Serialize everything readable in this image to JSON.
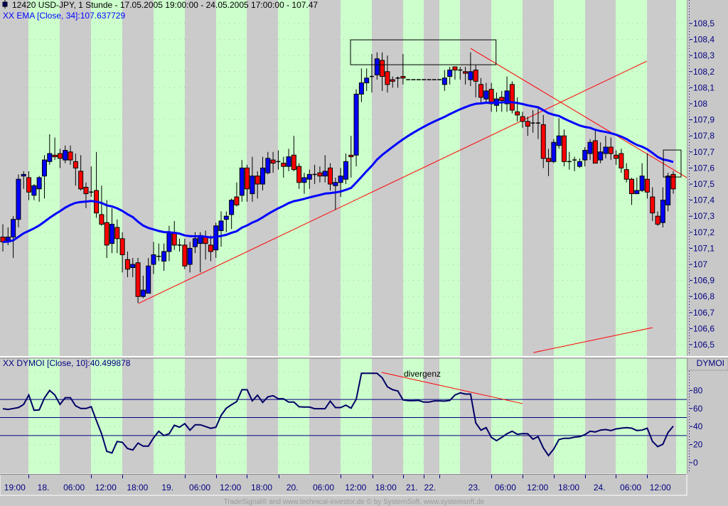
{
  "header": {
    "title": "12420  USD-JPY, 1 Stunde - 17.05.2005 19:00:00 - 24.05.2005 17:00:00 - 107.47",
    "ema_legend": "XX EMA [Close, 34]:107.637729",
    "dymoi_legend": "XX DYMOI [Close, 10]:40.499878",
    "dymoi_axis_title": "DYMOI"
  },
  "footer": "TradeSignal® and www.technical-investor.de © by  SystemSoft, www.systemsoft.de",
  "colors": {
    "up": "#0000ff",
    "down": "#ff0000",
    "ema": "#0000ff",
    "dymoi": "#000066",
    "band_green": "#ccffcc",
    "band_gray": "#cbcbcb",
    "trendline": "#ff0000",
    "axis_text": "#000080"
  },
  "chart_data": [
    {
      "type": "candlestick",
      "title": "USD-JPY, 1 Stunde",
      "ylim": [
        106.45,
        108.6
      ],
      "y_ticks": [
        {
          "label": "108,5",
          "value": 108.5
        },
        {
          "label": "108,4",
          "value": 108.4
        },
        {
          "label": "108,3",
          "value": 108.3
        },
        {
          "label": "108,2",
          "value": 108.2
        },
        {
          "label": "108,1",
          "value": 108.1
        },
        {
          "label": "108",
          "value": 108.0
        },
        {
          "label": "107,9",
          "value": 107.9
        },
        {
          "label": "107,8",
          "value": 107.8
        },
        {
          "label": "107,7",
          "value": 107.7
        },
        {
          "label": "107,6",
          "value": 107.6
        },
        {
          "label": "107,5",
          "value": 107.5
        },
        {
          "label": "107,4",
          "value": 107.4
        },
        {
          "label": "107,3",
          "value": 107.3
        },
        {
          "label": "107,2",
          "value": 107.2
        },
        {
          "label": "107,1",
          "value": 107.1
        },
        {
          "label": "107",
          "value": 107.0
        },
        {
          "label": "106,9",
          "value": 106.9
        },
        {
          "label": "106,8",
          "value": 106.8
        },
        {
          "label": "106,7",
          "value": 106.7
        },
        {
          "label": "106,6",
          "value": 106.6
        },
        {
          "label": "106,5",
          "value": 106.5
        }
      ],
      "x_ticks": [
        {
          "label": "19:00",
          "at": 2.3
        },
        {
          "label": "18.",
          "at": 7.8
        },
        {
          "label": "06:00",
          "at": 13.7
        },
        {
          "label": "12:00",
          "at": 19.8
        },
        {
          "label": "18:00",
          "at": 25.9
        },
        {
          "label": "19.",
          "at": 31.7
        },
        {
          "label": "06:00",
          "at": 37.9
        },
        {
          "label": "12:00",
          "at": 43.8
        },
        {
          "label": "18:00",
          "at": 49.8
        },
        {
          "label": "20.",
          "at": 55.7
        },
        {
          "label": "06:00",
          "at": 61.7
        },
        {
          "label": "12:00",
          "at": 67.9
        },
        {
          "label": "18:00",
          "at": 73.7
        },
        {
          "label": "21.",
          "at": 78.7
        },
        {
          "label": "22.",
          "at": 82.2
        },
        {
          "label": "23.",
          "at": 90.7
        },
        {
          "label": "06:00",
          "at": 96.7
        },
        {
          "label": "12:00",
          "at": 102.9
        },
        {
          "label": "18:00",
          "at": 108.9
        },
        {
          "label": "24.",
          "at": 114.8
        },
        {
          "label": "06:00",
          "at": 120.8
        },
        {
          "label": "12:00",
          "at": 126.5
        }
      ],
      "ohlc": [
        [
          107.17,
          107.25,
          107.08,
          107.14
        ],
        [
          107.15,
          107.23,
          107.12,
          107.17
        ],
        [
          107.17,
          107.3,
          107.04,
          107.28
        ],
        [
          107.28,
          107.56,
          107.23,
          107.53
        ],
        [
          107.55,
          107.58,
          107.47,
          107.56
        ],
        [
          107.54,
          107.58,
          107.4,
          107.45
        ],
        [
          107.43,
          107.5,
          107.4,
          107.49
        ],
        [
          107.47,
          107.55,
          107.39,
          107.54
        ],
        [
          107.55,
          107.68,
          107.41,
          107.65
        ],
        [
          107.64,
          107.81,
          107.62,
          107.69
        ],
        [
          107.68,
          107.79,
          107.65,
          107.67
        ],
        [
          107.69,
          107.72,
          107.6,
          107.66
        ],
        [
          107.65,
          107.74,
          107.63,
          107.71
        ],
        [
          107.7,
          107.74,
          107.62,
          107.65
        ],
        [
          107.64,
          107.69,
          107.49,
          107.6
        ],
        [
          107.58,
          107.68,
          107.46,
          107.47
        ],
        [
          107.48,
          107.51,
          107.35,
          107.44
        ],
        [
          107.45,
          107.61,
          107.42,
          107.45
        ],
        [
          107.46,
          107.7,
          107.29,
          107.32
        ],
        [
          107.31,
          107.49,
          107.24,
          107.25
        ],
        [
          107.26,
          107.4,
          107.04,
          107.12
        ],
        [
          107.13,
          107.35,
          107.07,
          107.25
        ],
        [
          107.23,
          107.28,
          107.07,
          107.16
        ],
        [
          107.16,
          107.2,
          106.95,
          107.06
        ],
        [
          107.03,
          107.08,
          106.92,
          106.97
        ],
        [
          106.98,
          107.04,
          106.92,
          107.0
        ],
        [
          107.01,
          107.04,
          106.76,
          106.8
        ],
        [
          106.8,
          106.93,
          106.79,
          106.84
        ],
        [
          106.82,
          107.04,
          106.82,
          106.99
        ],
        [
          107.0,
          107.14,
          106.94,
          107.06
        ],
        [
          107.05,
          107.13,
          107.02,
          107.05
        ],
        [
          107.02,
          107.13,
          106.96,
          107.08
        ],
        [
          107.08,
          107.24,
          107.02,
          107.2
        ],
        [
          107.2,
          107.27,
          107.09,
          107.12
        ],
        [
          107.12,
          107.16,
          107.08,
          107.12
        ],
        [
          107.12,
          107.16,
          106.97,
          106.99
        ],
        [
          107.0,
          107.14,
          106.95,
          107.1
        ],
        [
          107.11,
          107.2,
          107.07,
          107.16
        ],
        [
          107.13,
          107.2,
          106.95,
          107.18
        ],
        [
          107.17,
          107.21,
          107.03,
          107.13
        ],
        [
          107.12,
          107.18,
          107.02,
          107.08
        ],
        [
          107.09,
          107.26,
          107.04,
          107.24
        ],
        [
          107.21,
          107.33,
          107.11,
          107.27
        ],
        [
          107.28,
          107.33,
          107.2,
          107.3
        ],
        [
          107.31,
          107.41,
          107.22,
          107.4
        ],
        [
          107.42,
          107.51,
          107.36,
          107.37
        ],
        [
          107.43,
          107.65,
          107.39,
          107.6
        ],
        [
          107.6,
          107.62,
          107.39,
          107.47
        ],
        [
          107.44,
          107.67,
          107.39,
          107.55
        ],
        [
          107.55,
          107.58,
          107.41,
          107.5
        ],
        [
          107.5,
          107.67,
          107.46,
          107.6
        ],
        [
          107.57,
          107.7,
          107.56,
          107.66
        ],
        [
          107.65,
          107.7,
          107.57,
          107.63
        ],
        [
          107.64,
          107.71,
          107.59,
          107.64
        ],
        [
          107.63,
          107.67,
          107.54,
          107.61
        ],
        [
          107.61,
          107.72,
          107.58,
          107.67
        ],
        [
          107.68,
          107.8,
          107.58,
          107.59
        ],
        [
          107.61,
          107.63,
          107.47,
          107.51
        ],
        [
          107.51,
          107.57,
          107.44,
          107.54
        ],
        [
          107.53,
          107.59,
          107.47,
          107.56
        ],
        [
          107.56,
          107.62,
          107.5,
          107.56
        ],
        [
          107.57,
          107.61,
          107.51,
          107.55
        ],
        [
          107.55,
          107.68,
          107.51,
          107.58
        ],
        [
          107.6,
          107.63,
          107.46,
          107.5
        ],
        [
          107.49,
          107.54,
          107.34,
          107.51
        ],
        [
          107.51,
          107.6,
          107.42,
          107.55
        ],
        [
          107.53,
          107.69,
          107.5,
          107.64
        ],
        [
          107.68,
          107.8,
          107.54,
          107.67
        ],
        [
          107.68,
          108.09,
          107.61,
          108.06
        ],
        [
          108.06,
          108.22,
          108.01,
          108.13
        ],
        [
          108.13,
          108.22,
          108.08,
          108.16
        ],
        [
          108.17,
          108.31,
          108.07,
          108.17
        ],
        [
          108.18,
          108.32,
          108.15,
          108.28
        ],
        [
          108.27,
          108.32,
          108.08,
          108.17
        ],
        [
          108.2,
          108.3,
          108.07,
          108.12
        ],
        [
          108.15,
          108.17,
          108.1,
          108.14
        ],
        [
          108.16,
          108.17,
          108.1,
          108.16
        ],
        [
          108.17,
          108.31,
          108.12,
          108.16
        ],
        [
          108.15,
          108.15,
          108.15,
          108.15
        ],
        [
          108.15,
          108.15,
          108.15,
          108.15
        ],
        [
          108.15,
          108.15,
          108.15,
          108.15
        ],
        [
          108.15,
          108.15,
          108.15,
          108.15
        ],
        [
          108.15,
          108.15,
          108.15,
          108.15
        ],
        [
          108.15,
          108.15,
          108.15,
          108.15
        ],
        [
          108.15,
          108.15,
          108.15,
          108.15
        ],
        [
          108.12,
          108.21,
          108.08,
          108.16
        ],
        [
          108.17,
          108.23,
          108.12,
          108.21
        ],
        [
          108.23,
          108.23,
          108.15,
          108.21
        ],
        [
          108.21,
          108.23,
          108.15,
          108.21
        ],
        [
          108.2,
          108.23,
          108.12,
          108.19
        ],
        [
          108.15,
          108.32,
          108.11,
          108.2
        ],
        [
          108.21,
          108.24,
          108.04,
          108.14
        ],
        [
          108.12,
          108.16,
          108.0,
          108.04
        ],
        [
          108.03,
          108.13,
          108.0,
          108.08
        ],
        [
          108.09,
          108.13,
          107.95,
          108.0
        ],
        [
          107.99,
          108.07,
          107.95,
          108.03
        ],
        [
          108.04,
          108.08,
          107.95,
          108.02
        ],
        [
          108.0,
          108.17,
          107.95,
          108.08
        ],
        [
          108.12,
          108.14,
          107.94,
          107.96
        ],
        [
          107.95,
          108.04,
          107.89,
          107.93
        ],
        [
          107.92,
          107.95,
          107.85,
          107.89
        ],
        [
          107.89,
          107.92,
          107.8,
          107.86
        ],
        [
          107.88,
          107.96,
          107.82,
          107.88
        ],
        [
          107.88,
          107.98,
          107.78,
          107.88
        ],
        [
          107.87,
          107.93,
          107.6,
          107.66
        ],
        [
          107.66,
          107.72,
          107.55,
          107.64
        ],
        [
          107.64,
          107.78,
          107.63,
          107.76
        ],
        [
          107.74,
          107.91,
          107.72,
          107.8
        ],
        [
          107.8,
          107.84,
          107.61,
          107.64
        ],
        [
          107.64,
          107.7,
          107.59,
          107.64
        ],
        [
          107.65,
          107.67,
          107.58,
          107.65
        ],
        [
          107.61,
          107.66,
          107.6,
          107.64
        ],
        [
          107.65,
          107.73,
          107.61,
          107.71
        ],
        [
          107.69,
          107.78,
          107.65,
          107.76
        ],
        [
          107.77,
          107.84,
          107.63,
          107.63
        ],
        [
          107.65,
          107.76,
          107.63,
          107.7
        ],
        [
          107.69,
          107.8,
          107.66,
          107.73
        ],
        [
          107.73,
          107.79,
          107.65,
          107.69
        ],
        [
          107.68,
          107.71,
          107.62,
          107.66
        ],
        [
          107.69,
          107.72,
          107.57,
          107.6
        ],
        [
          107.59,
          107.63,
          107.51,
          107.53
        ],
        [
          107.53,
          107.54,
          107.37,
          107.44
        ],
        [
          107.44,
          107.54,
          107.44,
          107.46
        ],
        [
          107.46,
          107.63,
          107.45,
          107.55
        ],
        [
          107.53,
          107.69,
          107.41,
          107.45
        ],
        [
          107.42,
          107.48,
          107.27,
          107.32
        ],
        [
          107.3,
          107.33,
          107.24,
          107.25
        ],
        [
          107.26,
          107.48,
          107.23,
          107.4
        ],
        [
          107.37,
          107.57,
          107.33,
          107.55
        ],
        [
          107.56,
          107.58,
          107.44,
          107.47
        ]
      ],
      "ema": {
        "name": "EMA [Close, 34]",
        "period": 34,
        "last": 107.637729
      },
      "trendlines": [
        {
          "from": [
            26.1,
            106.757
          ],
          "to": [
            123.9,
            108.265
          ]
        },
        {
          "from": [
            90.0,
            108.345
          ],
          "to": [
            131.6,
            107.54
          ]
        },
        {
          "from": [
            102.1,
            106.451
          ],
          "to": [
            125.0,
            106.606
          ]
        }
      ],
      "boxes": [
        {
          "from": [
            66.9,
            108.398
          ],
          "to": [
            94.9,
            108.243
          ]
        },
        {
          "from": [
            127.1,
            107.712
          ],
          "to": [
            130.5,
            107.544
          ]
        }
      ]
    },
    {
      "type": "line",
      "title": "DYMOI [Close, 10]",
      "ylim": [
        -8,
        110
      ],
      "y_ticks": [
        {
          "label": "80",
          "value": 80
        },
        {
          "label": "60",
          "value": 60
        },
        {
          "label": "40",
          "value": 40
        },
        {
          "label": "20",
          "value": 20
        },
        {
          "label": "0",
          "value": 0
        }
      ],
      "levels": [
        70,
        50,
        30
      ],
      "values": [
        59.8,
        59,
        60,
        61,
        64.5,
        75,
        58,
        58.4,
        71.6,
        80,
        75,
        64.5,
        72,
        72,
        63,
        60,
        60,
        62,
        46.6,
        32,
        12.5,
        10.7,
        23.5,
        22.5,
        15.7,
        14,
        21.7,
        18.3,
        18.3,
        27.5,
        34.8,
        30,
        32,
        41.4,
        39.3,
        43.2,
        36,
        42,
        42,
        40,
        38,
        39.3,
        52.4,
        60.3,
        64.2,
        67.6,
        80.8,
        80.8,
        68.4,
        74.7,
        66.8,
        72.9,
        74.2,
        70.8,
        70.8,
        67.1,
        67.1,
        61.9,
        61.6,
        61.6,
        59.8,
        59.8,
        59.8,
        68.2,
        61,
        61,
        63.7,
        60.3,
        70.3,
        99,
        99,
        99,
        99,
        94,
        84,
        80.8,
        79.4,
        69.5,
        68.7,
        68.7,
        69,
        67.1,
        67.1,
        68.4,
        68.4,
        68.2,
        69,
        75,
        77.3,
        76,
        76,
        44,
        36,
        38.8,
        28,
        24.3,
        28,
        32,
        34.8,
        31.4,
        32.2,
        32,
        26,
        28.8,
        16.4,
        7.8,
        15.1,
        25.6,
        27,
        27,
        28.3,
        28.8,
        31,
        34.8,
        34,
        36.1,
        36.7,
        35.6,
        37.4,
        38.2,
        38.8,
        38.2,
        35.6,
        36.1,
        38.2,
        23.5,
        17.8,
        20.4,
        33.5,
        40.5
      ],
      "annotation": {
        "label": "divergenz",
        "from": [
          72.9,
          100
        ],
        "to": [
          100,
          65.4
        ]
      }
    }
  ]
}
